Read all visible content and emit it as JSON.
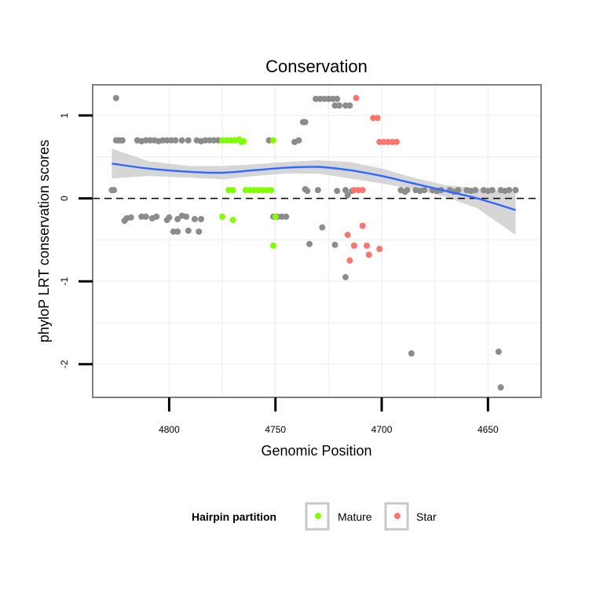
{
  "chart_data": {
    "type": "scatter",
    "title": "Conservation",
    "xlabel": "Genomic Position",
    "ylabel": "phyloP LRT conservation scores",
    "xlim": [
      4836,
      4625
    ],
    "x_reversed": true,
    "ylim": [
      -2.4,
      1.37
    ],
    "xticks": [
      4800,
      4750,
      4700,
      4650
    ],
    "xtick_labels": [
      "4800",
      "4750",
      "4700",
      "4650"
    ],
    "yticks": [
      1,
      0,
      -1,
      -2
    ],
    "ytick_labels": [
      "1",
      "0",
      "-1",
      "-2"
    ],
    "reference_line": {
      "y": 0,
      "style": "dashed"
    },
    "legend": {
      "title": "Hairpin partition",
      "entries": [
        {
          "label": "Mature",
          "color": "#7FFF00"
        },
        {
          "label": "Star",
          "color": "#F8766D"
        }
      ],
      "placement": "bottom"
    },
    "colors": {
      "Other": "#8C8C8C",
      "Mature": "#7FFF00",
      "Star": "#F8766D",
      "smooth": "#3366FF",
      "ribbon": "#C8C8C8"
    },
    "series": [
      {
        "name": "Other",
        "points": [
          [
            4825,
            1.21
          ],
          [
            4827,
            0.1
          ],
          [
            4826,
            0.1
          ],
          [
            4825,
            0.7
          ],
          [
            4824,
            0.7
          ],
          [
            4823,
            0.7
          ],
          [
            4822,
            0.7
          ],
          [
            4815,
            0.7
          ],
          [
            4813,
            0.69
          ],
          [
            4811,
            0.7
          ],
          [
            4809,
            0.7
          ],
          [
            4807,
            0.7
          ],
          [
            4805,
            0.69
          ],
          [
            4803,
            0.7
          ],
          [
            4801,
            0.7
          ],
          [
            4799,
            0.7
          ],
          [
            4797,
            0.7
          ],
          [
            4794,
            0.7
          ],
          [
            4791,
            0.7
          ],
          [
            4787,
            0.7
          ],
          [
            4785,
            0.69
          ],
          [
            4783,
            0.7
          ],
          [
            4781,
            0.7
          ],
          [
            4779,
            0.7
          ],
          [
            4777,
            0.7
          ],
          [
            4821,
            -0.27
          ],
          [
            4820,
            -0.24
          ],
          [
            4818,
            -0.23
          ],
          [
            4813,
            -0.22
          ],
          [
            4811,
            -0.22
          ],
          [
            4808,
            -0.24
          ],
          [
            4806,
            -0.22
          ],
          [
            4801,
            -0.26
          ],
          [
            4800,
            -0.23
          ],
          [
            4796,
            -0.25
          ],
          [
            4794,
            -0.21
          ],
          [
            4792,
            -0.22
          ],
          [
            4788,
            -0.25
          ],
          [
            4785,
            -0.25
          ],
          [
            4798,
            -0.4
          ],
          [
            4796,
            -0.4
          ],
          [
            4791,
            -0.39
          ],
          [
            4786,
            -0.4
          ],
          [
            4753,
            0.7
          ],
          [
            4741,
            0.68
          ],
          [
            4739,
            0.7
          ],
          [
            4751,
            -0.22
          ],
          [
            4749,
            -0.22
          ],
          [
            4747,
            -0.22
          ],
          [
            4745,
            -0.22
          ],
          [
            4737,
            0.92
          ],
          [
            4736,
            0.92
          ],
          [
            4736,
            0.11
          ],
          [
            4735,
            0.09
          ],
          [
            4730,
            0.1
          ],
          [
            4721,
            0.09
          ],
          [
            4717,
            0.1
          ],
          [
            4716,
            0.04
          ],
          [
            4714,
            0.09
          ],
          [
            4734,
            -0.55
          ],
          [
            4722,
            -0.56
          ],
          [
            4728,
            -0.35
          ],
          [
            4731,
            1.2
          ],
          [
            4729,
            1.2
          ],
          [
            4727,
            1.2
          ],
          [
            4725,
            1.2
          ],
          [
            4723,
            1.2
          ],
          [
            4721,
            1.2
          ],
          [
            4722,
            1.12
          ],
          [
            4720,
            1.12
          ],
          [
            4717,
            1.12
          ],
          [
            4715,
            1.12
          ],
          [
            4717,
            -0.95
          ],
          [
            4691,
            0.1
          ],
          [
            4688,
            0.1
          ],
          [
            4684,
            0.1
          ],
          [
            4680,
            0.1
          ],
          [
            4676,
            0.1
          ],
          [
            4672,
            0.1
          ],
          [
            4668,
            0.1
          ],
          [
            4664,
            0.1
          ],
          [
            4660,
            0.1
          ],
          [
            4656,
            0.1
          ],
          [
            4652,
            0.1
          ],
          [
            4648,
            0.1
          ],
          [
            4644,
            0.1
          ],
          [
            4640,
            0.1
          ],
          [
            4637,
            0.1
          ],
          [
            4689,
            0.08
          ],
          [
            4682,
            0.09
          ],
          [
            4674,
            0.09
          ],
          [
            4666,
            0.08
          ],
          [
            4658,
            0.09
          ],
          [
            4650,
            0.09
          ],
          [
            4642,
            0.09
          ],
          [
            4686,
            -1.87
          ],
          [
            4645,
            -1.85
          ],
          [
            4644,
            -2.28
          ]
        ]
      },
      {
        "name": "Mature",
        "points": [
          [
            4775,
            0.7
          ],
          [
            4773,
            0.7
          ],
          [
            4771,
            0.7
          ],
          [
            4769,
            0.7
          ],
          [
            4767,
            0.71
          ],
          [
            4765,
            0.69
          ],
          [
            4766,
            0.68
          ],
          [
            4751,
            0.7
          ],
          [
            4772,
            0.1
          ],
          [
            4770,
            0.1
          ],
          [
            4764,
            0.1
          ],
          [
            4762,
            0.1
          ],
          [
            4760,
            0.1
          ],
          [
            4758,
            0.1
          ],
          [
            4756,
            0.1
          ],
          [
            4754,
            0.1
          ],
          [
            4752,
            0.1
          ],
          [
            4775,
            -0.22
          ],
          [
            4770,
            -0.26
          ],
          [
            4750,
            -0.22
          ],
          [
            4751,
            -0.57
          ]
        ]
      },
      {
        "name": "Star",
        "points": [
          [
            4712,
            1.21
          ],
          [
            4704,
            0.97
          ],
          [
            4702,
            0.97
          ],
          [
            4701,
            0.68
          ],
          [
            4699,
            0.68
          ],
          [
            4697,
            0.68
          ],
          [
            4695,
            0.68
          ],
          [
            4693,
            0.68
          ],
          [
            4713,
            0.1
          ],
          [
            4711,
            0.1
          ],
          [
            4709,
            0.1
          ],
          [
            4716,
            -0.44
          ],
          [
            4709,
            -0.33
          ],
          [
            4715,
            -0.75
          ],
          [
            4713,
            -0.57
          ],
          [
            4707,
            -0.57
          ],
          [
            4706,
            -0.68
          ],
          [
            4701,
            -0.61
          ]
        ]
      }
    ],
    "smooth": {
      "x": [
        4827,
        4810,
        4790,
        4775,
        4760,
        4745,
        4730,
        4715,
        4700,
        4685,
        4670,
        4655,
        4637
      ],
      "y": [
        0.42,
        0.36,
        0.32,
        0.31,
        0.34,
        0.37,
        0.38,
        0.34,
        0.27,
        0.18,
        0.09,
        0.0,
        -0.14
      ],
      "ci_upper": [
        0.6,
        0.45,
        0.39,
        0.39,
        0.41,
        0.44,
        0.46,
        0.44,
        0.36,
        0.25,
        0.16,
        0.12,
        0.07
      ],
      "ci_lower": [
        0.24,
        0.27,
        0.25,
        0.23,
        0.27,
        0.3,
        0.3,
        0.24,
        0.18,
        0.11,
        0.02,
        -0.12,
        -0.44
      ]
    }
  }
}
